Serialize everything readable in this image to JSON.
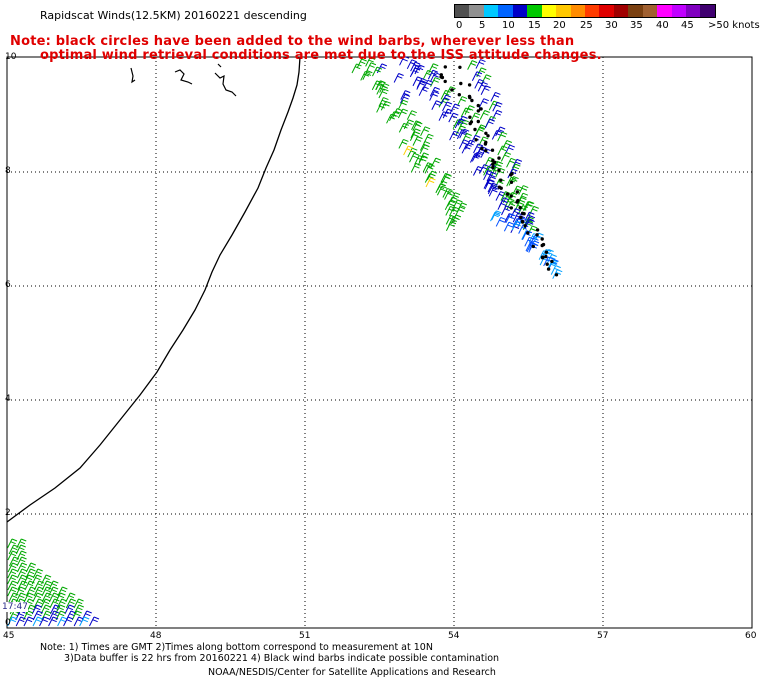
{
  "header": {
    "title": "Rapidscat Winds(12.5KM) 20160221 descending",
    "note_line1": "Note: black circles have been added to the wind barbs, wherever less than",
    "note_line2": "optimal wind retrieval conditions are met due to the ISS attitude changes."
  },
  "legend": {
    "colors": [
      "#505050",
      "#909090",
      "#00c8ff",
      "#0064ff",
      "#0000c8",
      "#00c800",
      "#ffff00",
      "#ffc800",
      "#ff8c00",
      "#ff3c00",
      "#e00000",
      "#a00000",
      "#7a4010",
      "#a06030",
      "#ff00ff",
      "#c000ff",
      "#8000c0",
      "#400070"
    ],
    "labels": [
      "0",
      "5",
      "10",
      "15",
      "20",
      "25",
      "30",
      "35",
      "40",
      "45",
      ">50 knots"
    ]
  },
  "map": {
    "x_ticks": [
      "45",
      "48",
      "51",
      "54",
      "57",
      "60"
    ],
    "y_ticks": [
      "10",
      "8",
      "6",
      "4",
      "2",
      "0"
    ],
    "time_label": "17:47"
  },
  "footer": {
    "line1": "Note: 1) Times are GMT 2)Times along bottom correspond to measurement at 10N",
    "line2": "3)Data buffer is 22 hrs from 20160221 4) Black wind barbs indicate possible contamination",
    "line3": "NOAA/NESDIS/Center for Satellite Applications and Research"
  }
}
